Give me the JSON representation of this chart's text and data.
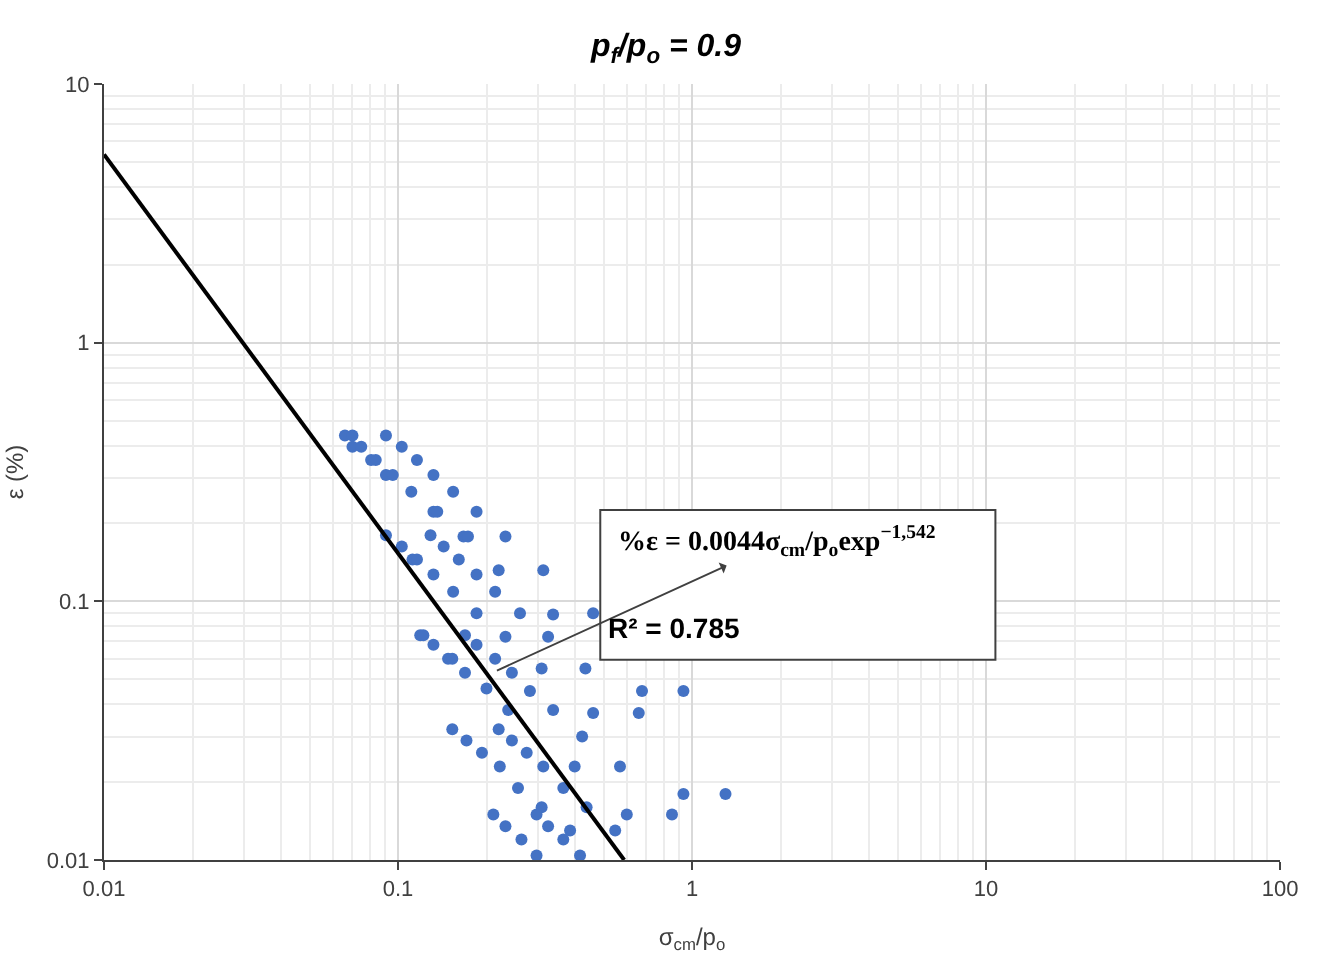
{
  "chart_data": {
    "type": "scatter",
    "title": "p$_{f}$/p$_{o}$ = 0.9",
    "xlabel": "σ$_{cm}$/p$_{o}$",
    "ylabel": "ε (%)",
    "log": "xy",
    "grid": true,
    "xlim": [
      0.01,
      100
    ],
    "xticks": [
      0.01,
      0.1,
      1,
      10,
      100
    ],
    "ylim": [
      0.01,
      10
    ],
    "yticks": [
      0.01,
      0.1,
      1,
      10
    ],
    "annotations": [
      {
        "text": "%ε = 0.0044σ$_{cm}$/p$_{o}$exp$^{−1,542}$",
        "x": 0.217,
        "y": 0.054
      },
      "R² = 0.785"
    ],
    "series": [
      {
        "color": "#4472c4",
        "marker": "circle",
        "x": [
          0.066,
          0.07,
          0.07,
          0.075,
          0.091,
          0.103,
          0.081,
          0.084,
          0.116,
          0.091,
          0.096,
          0.132,
          0.111,
          0.154,
          0.132,
          0.136,
          0.185,
          0.091,
          0.129,
          0.103,
          0.143,
          0.167,
          0.173,
          0.232,
          0.112,
          0.116,
          0.161,
          0.22,
          0.312,
          0.132,
          0.185,
          0.154,
          0.214,
          0.185,
          0.26,
          0.337,
          0.461,
          0.119,
          0.122,
          0.169,
          0.232,
          0.324,
          0.132,
          0.185,
          0.148,
          0.153,
          0.214,
          0.169,
          0.244,
          0.308,
          0.434,
          0.2,
          0.281,
          0.676,
          0.935,
          0.237,
          0.337,
          0.461,
          0.659,
          0.153,
          0.22,
          0.171,
          0.244,
          0.423,
          0.193,
          0.274,
          0.222,
          0.312,
          0.399,
          0.569,
          0.256,
          0.365,
          0.935,
          1.3,
          0.308,
          0.438,
          0.211,
          0.296,
          0.6,
          0.855,
          0.232,
          0.324,
          0.385,
          0.548,
          0.263,
          0.365,
          0.296,
          0.416
        ],
        "values": [
          0.438,
          0.438,
          0.396,
          0.396,
          0.438,
          0.396,
          0.352,
          0.352,
          0.352,
          0.308,
          0.308,
          0.308,
          0.265,
          0.265,
          0.222,
          0.222,
          0.222,
          0.18,
          0.18,
          0.163,
          0.163,
          0.178,
          0.178,
          0.178,
          0.145,
          0.145,
          0.145,
          0.132,
          0.132,
          0.127,
          0.127,
          0.109,
          0.109,
          0.09,
          0.09,
          0.089,
          0.09,
          0.074,
          0.074,
          0.074,
          0.073,
          0.073,
          0.068,
          0.068,
          0.06,
          0.06,
          0.06,
          0.053,
          0.053,
          0.055,
          0.055,
          0.046,
          0.045,
          0.045,
          0.045,
          0.038,
          0.038,
          0.037,
          0.037,
          0.032,
          0.032,
          0.029,
          0.029,
          0.03,
          0.026,
          0.026,
          0.023,
          0.023,
          0.023,
          0.023,
          0.019,
          0.019,
          0.018,
          0.018,
          0.016,
          0.016,
          0.015,
          0.015,
          0.015,
          0.015,
          0.0135,
          0.0135,
          0.013,
          0.013,
          0.012,
          0.012,
          0.0104,
          0.0104
        ]
      },
      {
        "type": "line",
        "color": "#000000",
        "x": [
          0.01,
          0.588
        ],
        "values": [
          5.34,
          0.01
        ]
      }
    ]
  }
}
